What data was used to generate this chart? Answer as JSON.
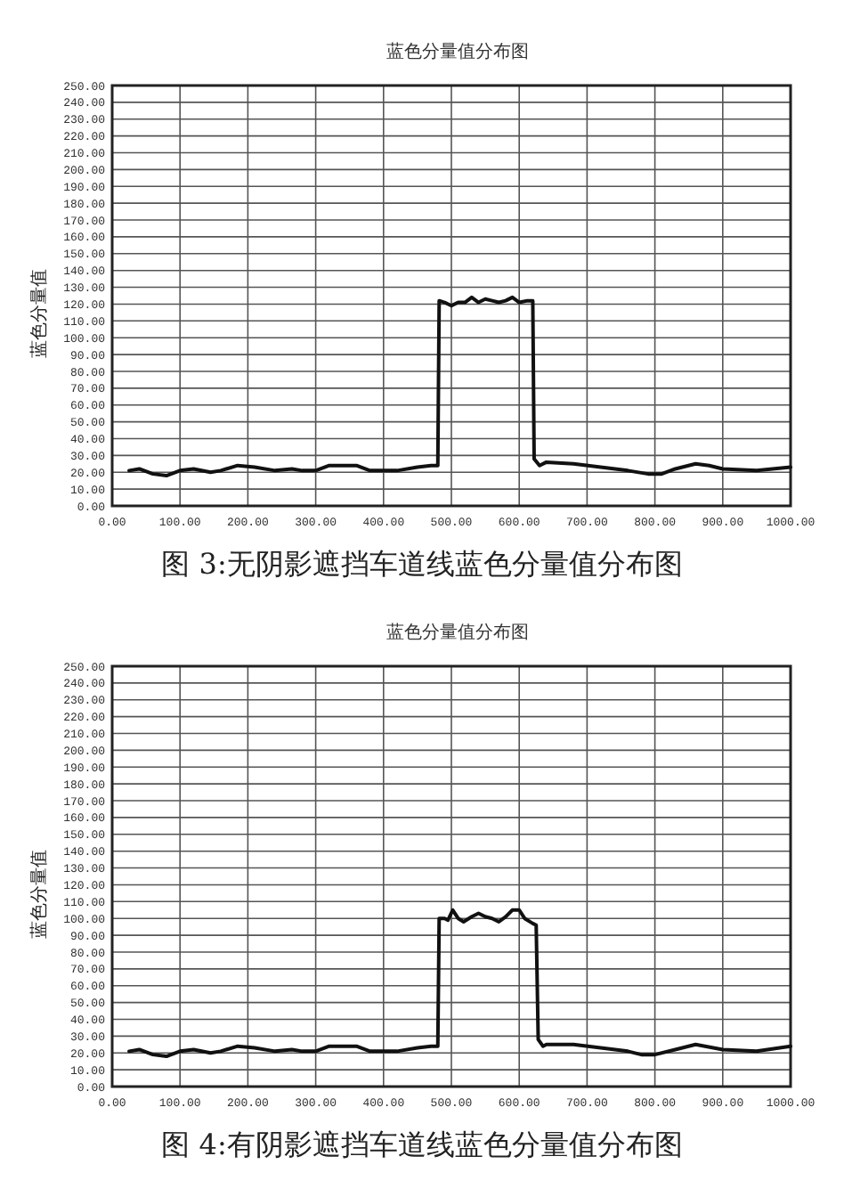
{
  "chart_data": [
    {
      "type": "line",
      "title": "蓝色分量值分布图",
      "ylabel": "蓝色分量值",
      "annotations": [
        "图 3:无阴影遮挡车道线蓝色分量值分布图"
      ],
      "grid": true,
      "marker": "none",
      "line_style": "solid",
      "xlim": [
        0,
        1000
      ],
      "xticks": [
        {
          "value": 0,
          "label": "0.00"
        },
        {
          "value": 100,
          "label": "100.00"
        },
        {
          "value": 200,
          "label": "200.00"
        },
        {
          "value": 300,
          "label": "300.00"
        },
        {
          "value": 400,
          "label": "400.00"
        },
        {
          "value": 500,
          "label": "500.00"
        },
        {
          "value": 600,
          "label": "600.00"
        },
        {
          "value": 700,
          "label": "700.00"
        },
        {
          "value": 800,
          "label": "800.00"
        },
        {
          "value": 900,
          "label": "900.00"
        },
        {
          "value": 1000,
          "label": "1000.00"
        }
      ],
      "ylim": [
        0,
        250
      ],
      "yticks": [
        {
          "value": 0,
          "label": "0.00"
        },
        {
          "value": 10,
          "label": "10.00"
        },
        {
          "value": 20,
          "label": "20.00"
        },
        {
          "value": 30,
          "label": "30.00"
        },
        {
          "value": 40,
          "label": "40.00"
        },
        {
          "value": 50,
          "label": "50.00"
        },
        {
          "value": 60,
          "label": "60.00"
        },
        {
          "value": 70,
          "label": "70.00"
        },
        {
          "value": 80,
          "label": "80.00"
        },
        {
          "value": 90,
          "label": "90.00"
        },
        {
          "value": 100,
          "label": "100.00"
        },
        {
          "value": 110,
          "label": "110.00"
        },
        {
          "value": 120,
          "label": "120.00"
        },
        {
          "value": 130,
          "label": "130.00"
        },
        {
          "value": 140,
          "label": "140.00"
        },
        {
          "value": 150,
          "label": "150.00"
        },
        {
          "value": 160,
          "label": "160.00"
        },
        {
          "value": 170,
          "label": "170.00"
        },
        {
          "value": 180,
          "label": "180.00"
        },
        {
          "value": 190,
          "label": "190.00"
        },
        {
          "value": 200,
          "label": "200.00"
        },
        {
          "value": 210,
          "label": "210.00"
        },
        {
          "value": 220,
          "label": "220.00"
        },
        {
          "value": 230,
          "label": "230.00"
        },
        {
          "value": 240,
          "label": "240.00"
        },
        {
          "value": 250,
          "label": "250.00"
        }
      ],
      "series": [
        {
          "color": "#111111",
          "x": [
            25,
            40,
            60,
            80,
            100,
            120,
            145,
            160,
            185,
            210,
            240,
            265,
            280,
            300,
            320,
            360,
            380,
            420,
            450,
            470,
            480,
            482,
            490,
            500,
            510,
            520,
            530,
            540,
            550,
            560,
            570,
            580,
            590,
            600,
            612,
            620,
            622,
            630,
            640,
            680,
            720,
            760,
            790,
            810,
            830,
            860,
            880,
            900,
            950,
            1000
          ],
          "values": [
            21,
            22,
            19,
            18,
            21,
            22,
            20,
            21,
            24,
            23,
            21,
            22,
            21,
            21,
            24,
            24,
            21,
            21,
            23,
            24,
            24,
            122,
            121,
            119,
            121,
            121,
            124,
            121,
            123,
            122,
            121,
            122,
            124,
            121,
            122,
            122,
            28,
            24,
            26,
            25,
            23,
            21,
            19,
            19,
            22,
            25,
            24,
            22,
            21,
            23
          ]
        }
      ]
    },
    {
      "type": "line",
      "title": "蓝色分量值分布图",
      "ylabel": "蓝色分量值",
      "annotations": [
        "图 4:有阴影遮挡车道线蓝色分量值分布图"
      ],
      "grid": true,
      "marker": "none",
      "line_style": "solid",
      "xlim": [
        0,
        1000
      ],
      "xticks": [
        {
          "value": 0,
          "label": "0.00"
        },
        {
          "value": 100,
          "label": "100.00"
        },
        {
          "value": 200,
          "label": "200.00"
        },
        {
          "value": 300,
          "label": "300.00"
        },
        {
          "value": 400,
          "label": "400.00"
        },
        {
          "value": 500,
          "label": "500.00"
        },
        {
          "value": 600,
          "label": "600.00"
        },
        {
          "value": 700,
          "label": "700.00"
        },
        {
          "value": 800,
          "label": "800.00"
        },
        {
          "value": 900,
          "label": "900.00"
        },
        {
          "value": 1000,
          "label": "1000.00"
        }
      ],
      "ylim": [
        0,
        250
      ],
      "yticks": [
        {
          "value": 0,
          "label": "0.00"
        },
        {
          "value": 10,
          "label": "10.00"
        },
        {
          "value": 20,
          "label": "20.00"
        },
        {
          "value": 30,
          "label": "30.00"
        },
        {
          "value": 40,
          "label": "40.00"
        },
        {
          "value": 50,
          "label": "50.00"
        },
        {
          "value": 60,
          "label": "60.00"
        },
        {
          "value": 70,
          "label": "70.00"
        },
        {
          "value": 80,
          "label": "80.00"
        },
        {
          "value": 90,
          "label": "90.00"
        },
        {
          "value": 100,
          "label": "100.00"
        },
        {
          "value": 110,
          "label": "110.00"
        },
        {
          "value": 120,
          "label": "120.00"
        },
        {
          "value": 130,
          "label": "130.00"
        },
        {
          "value": 140,
          "label": "140.00"
        },
        {
          "value": 150,
          "label": "150.00"
        },
        {
          "value": 160,
          "label": "160.00"
        },
        {
          "value": 170,
          "label": "170.00"
        },
        {
          "value": 180,
          "label": "180.00"
        },
        {
          "value": 190,
          "label": "190.00"
        },
        {
          "value": 200,
          "label": "200.00"
        },
        {
          "value": 210,
          "label": "210.00"
        },
        {
          "value": 220,
          "label": "220.00"
        },
        {
          "value": 230,
          "label": "230.00"
        },
        {
          "value": 240,
          "label": "240.00"
        },
        {
          "value": 250,
          "label": "250.00"
        }
      ],
      "series": [
        {
          "color": "#111111",
          "x": [
            25,
            40,
            60,
            80,
            100,
            120,
            145,
            160,
            185,
            210,
            240,
            265,
            280,
            300,
            320,
            360,
            380,
            420,
            450,
            470,
            480,
            482,
            490,
            495,
            502,
            510,
            518,
            530,
            540,
            550,
            560,
            570,
            580,
            590,
            600,
            608,
            620,
            625,
            628,
            635,
            640,
            680,
            720,
            760,
            780,
            800,
            830,
            860,
            900,
            950,
            1000
          ],
          "values": [
            21,
            22,
            19,
            18,
            21,
            22,
            20,
            21,
            24,
            23,
            21,
            22,
            21,
            21,
            24,
            24,
            21,
            21,
            23,
            24,
            24,
            100,
            100,
            99,
            105,
            100,
            98,
            101,
            103,
            101,
            100,
            98,
            101,
            105,
            105,
            100,
            97,
            96,
            28,
            24,
            25,
            25,
            23,
            21,
            19,
            19,
            22,
            25,
            22,
            21,
            24
          ]
        }
      ]
    }
  ]
}
